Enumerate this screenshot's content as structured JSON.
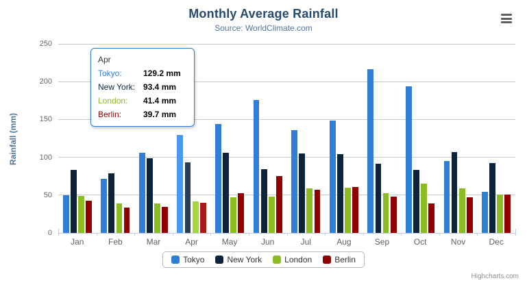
{
  "chart": {
    "title": "Monthly Average Rainfall",
    "subtitle": "Source: WorldClimate.com",
    "y_axis_title": "Rainfall (mm)",
    "credits": "Highcharts.com"
  },
  "chart_data": {
    "type": "bar",
    "title": "Monthly Average Rainfall",
    "subtitle": "Source: WorldClimate.com",
    "xlabel": "",
    "ylabel": "Rainfall (mm)",
    "categories": [
      "Jan",
      "Feb",
      "Mar",
      "Apr",
      "May",
      "Jun",
      "Jul",
      "Aug",
      "Sep",
      "Oct",
      "Nov",
      "Dec"
    ],
    "series": [
      {
        "name": "Tokyo",
        "color": "#2f7ed8",
        "hover_color": "#4998f2",
        "values": [
          49.9,
          71.5,
          106.4,
          129.2,
          144.0,
          176.0,
          135.6,
          148.5,
          216.4,
          194.1,
          95.6,
          54.4
        ]
      },
      {
        "name": "New York",
        "color": "#0d233a",
        "hover_color": "#273d54",
        "values": [
          83.6,
          78.8,
          98.5,
          93.4,
          106.0,
          84.5,
          105.0,
          104.3,
          91.2,
          83.5,
          106.6,
          92.3
        ]
      },
      {
        "name": "London",
        "color": "#8bbc21",
        "hover_color": "#a5d63b",
        "values": [
          48.9,
          38.8,
          39.3,
          41.4,
          47.0,
          48.3,
          59.0,
          59.6,
          52.4,
          65.2,
          59.3,
          51.2
        ]
      },
      {
        "name": "Berlin",
        "color": "#910000",
        "hover_color": "#ab1a1a",
        "values": [
          42.4,
          33.2,
          34.5,
          39.7,
          52.6,
          75.5,
          57.4,
          60.4,
          47.6,
          39.1,
          46.8,
          51.1
        ]
      }
    ],
    "ylim": [
      0,
      250
    ],
    "ytick_step": 50,
    "grid": true,
    "legend_position": "bottom",
    "hover_category": "Apr",
    "hover_category_index": 3
  },
  "tooltip": {
    "header": "Apr",
    "border_color": "#2f7ed8",
    "rows": [
      {
        "label": "Tokyo:",
        "value": "129.2 mm",
        "color": "#2f7ed8"
      },
      {
        "label": "New York:",
        "value": "93.4 mm",
        "color": "#0d233a"
      },
      {
        "label": "London:",
        "value": "41.4 mm",
        "color": "#8bbc21"
      },
      {
        "label": "Berlin:",
        "value": "39.7 mm",
        "color": "#910000"
      }
    ]
  },
  "legend": {
    "items": [
      {
        "label": "Tokyo",
        "color": "#2f7ed8"
      },
      {
        "label": "New York",
        "color": "#0d233a"
      },
      {
        "label": "London",
        "color": "#8bbc21"
      },
      {
        "label": "Berlin",
        "color": "#910000"
      }
    ]
  }
}
